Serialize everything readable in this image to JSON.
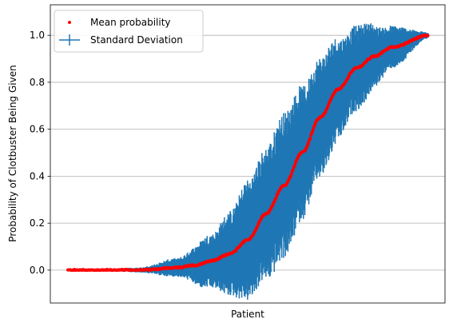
{
  "chart_data": {
    "type": "scatter",
    "title": "",
    "xlabel": "Patient",
    "ylabel": "Probability of Clotbuster Being Given",
    "ylim": [
      -0.14,
      1.13
    ],
    "yticks": [
      0.0,
      0.2,
      0.4,
      0.6,
      0.8,
      1.0
    ],
    "ytick_labels": [
      "0.0",
      "0.2",
      "0.4",
      "0.6",
      "0.8",
      "1.0"
    ],
    "grid": "y-axis only",
    "legend_placement": "top-left",
    "x_ticks_shown": false,
    "patient_count": 1000,
    "series": [
      {
        "name": "Mean probability",
        "marker": "dot",
        "color": "#ff0000"
      },
      {
        "name": "Standard Deviation",
        "marker": "vertical error bars",
        "color": "#1f77b4"
      }
    ],
    "mean_curve_control_points": {
      "x": [
        0.0,
        0.1,
        0.2,
        0.3,
        0.35,
        0.4,
        0.45,
        0.5,
        0.55,
        0.6,
        0.65,
        0.7,
        0.75,
        0.8,
        0.85,
        0.9,
        1.0
      ],
      "y": [
        0.0,
        0.0,
        0.0,
        0.01,
        0.02,
        0.04,
        0.07,
        0.13,
        0.24,
        0.36,
        0.5,
        0.65,
        0.77,
        0.86,
        0.91,
        0.95,
        1.0
      ]
    },
    "std_curve_control_points": {
      "x": [
        0.0,
        0.1,
        0.2,
        0.3,
        0.4,
        0.45,
        0.5,
        0.6,
        0.7,
        0.8,
        0.9,
        1.0
      ],
      "y": [
        0.0,
        0.002,
        0.008,
        0.03,
        0.09,
        0.14,
        0.2,
        0.24,
        0.2,
        0.14,
        0.07,
        0.01
      ]
    }
  },
  "colors": {
    "axes": "#000000",
    "grid": "#b0b0b0",
    "errorbar": "#1f77b4",
    "mean": "#ff0000",
    "legend_border": "#cccccc"
  }
}
